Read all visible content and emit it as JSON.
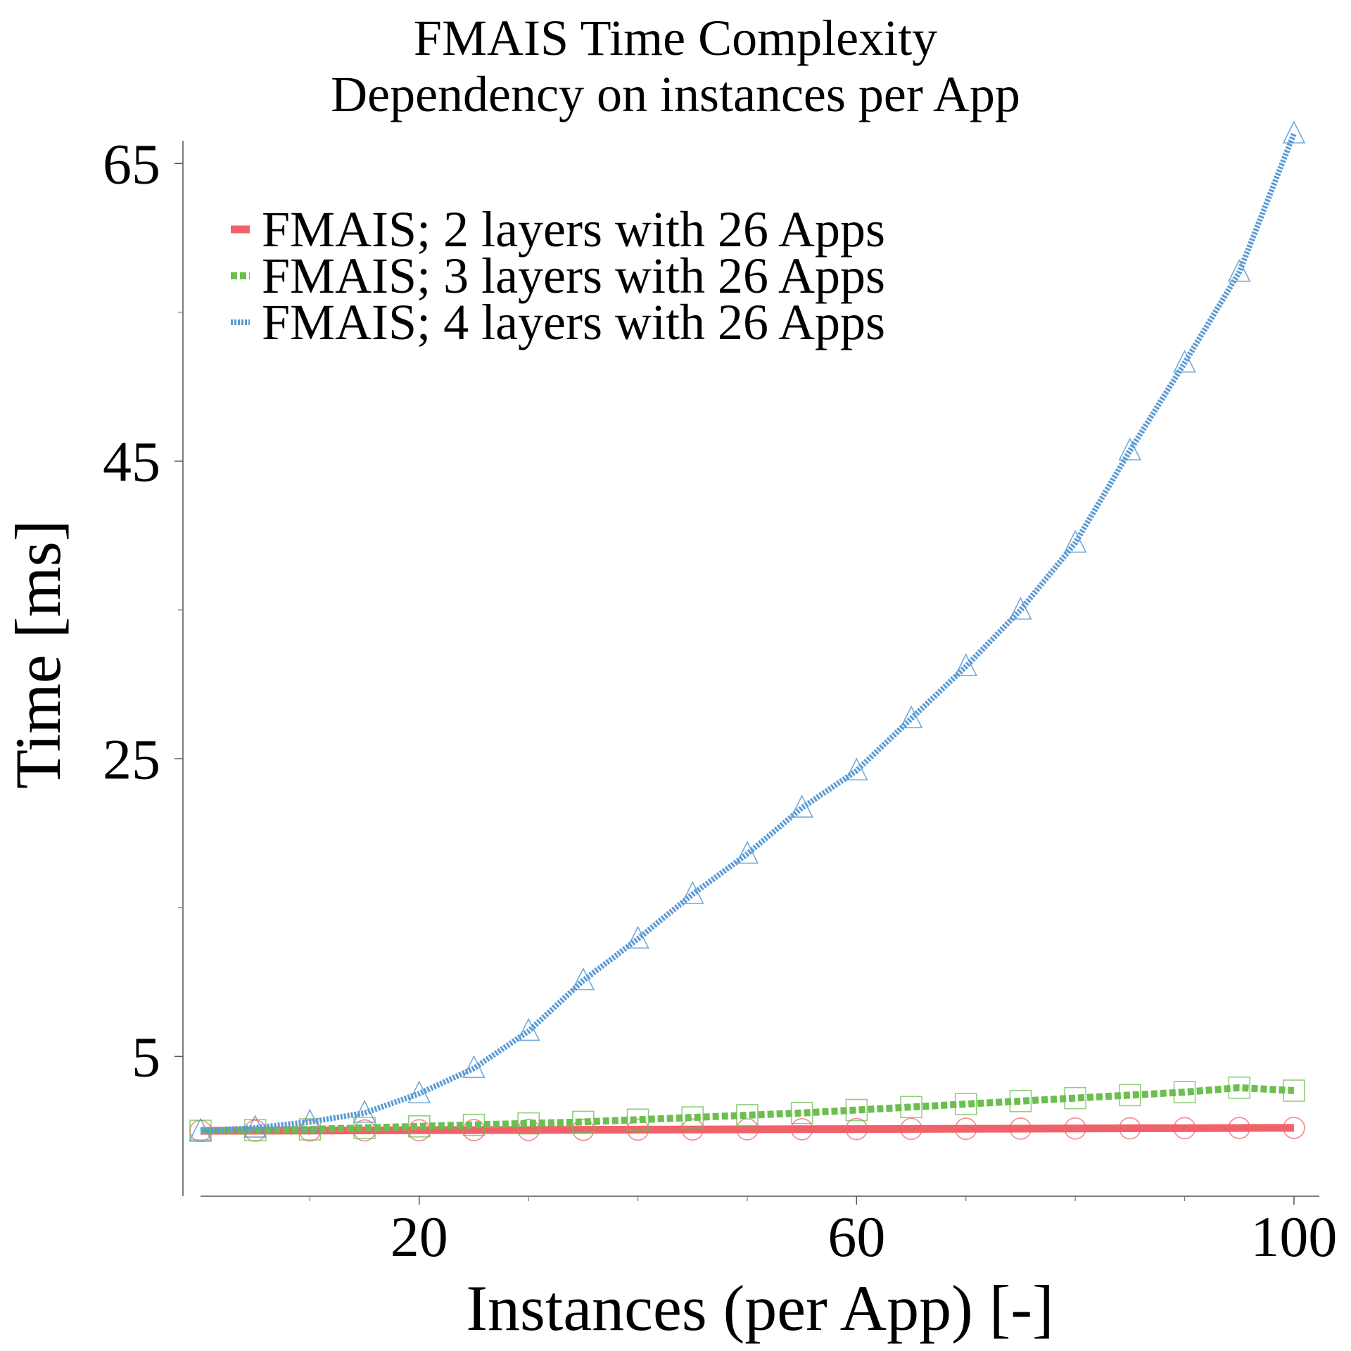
{
  "chart_data": {
    "type": "line",
    "title": [
      "FMAIS Time Complexity",
      "Dependency on instances per App"
    ],
    "xlabel": "Instances (per App) [-]",
    "ylabel": "Time [ms]",
    "xlim": [
      0,
      102
    ],
    "ylim": [
      -2.5,
      67
    ],
    "x_ticks": [
      20,
      60,
      100
    ],
    "x_minor_ticks": [
      10,
      30,
      40,
      50,
      70,
      80,
      90
    ],
    "y_ticks": [
      5,
      25,
      45,
      65
    ],
    "y_minor_ticks": [
      15,
      35,
      55
    ],
    "legend_position": "top-left",
    "grid": false,
    "x": [
      0,
      5,
      10,
      15,
      20,
      25,
      30,
      35,
      40,
      45,
      50,
      55,
      60,
      65,
      70,
      75,
      80,
      85,
      90,
      95,
      100
    ],
    "series": [
      {
        "name": "FMAIS; 2 layers with 26 Apps",
        "color": "#f0626a",
        "line_style": "solid",
        "marker": "circle",
        "values": [
          0.0,
          0.01,
          0.02,
          0.03,
          0.04,
          0.05,
          0.06,
          0.07,
          0.08,
          0.09,
          0.1,
          0.11,
          0.12,
          0.13,
          0.14,
          0.15,
          0.16,
          0.17,
          0.18,
          0.19,
          0.2
        ]
      },
      {
        "name": "FMAIS; 3 layers with 26 Apps",
        "color": "#6cbf4f",
        "line_style": "dashed",
        "marker": "square",
        "values": [
          0.0,
          0.05,
          0.1,
          0.2,
          0.3,
          0.4,
          0.5,
          0.6,
          0.75,
          0.9,
          1.05,
          1.2,
          1.4,
          1.6,
          1.8,
          2.0,
          2.2,
          2.4,
          2.6,
          2.9,
          2.7
        ]
      },
      {
        "name": "FMAIS; 4 layers with 26 Apps",
        "color": "#5b9bd5",
        "line_style": "dotted",
        "marker": "triangle",
        "values": [
          0.0,
          0.2,
          0.6,
          1.2,
          2.5,
          4.2,
          6.7,
          10.1,
          12.9,
          15.9,
          18.6,
          21.7,
          24.2,
          27.7,
          31.2,
          35.0,
          39.5,
          45.7,
          51.6,
          57.7,
          67.0
        ]
      }
    ]
  }
}
